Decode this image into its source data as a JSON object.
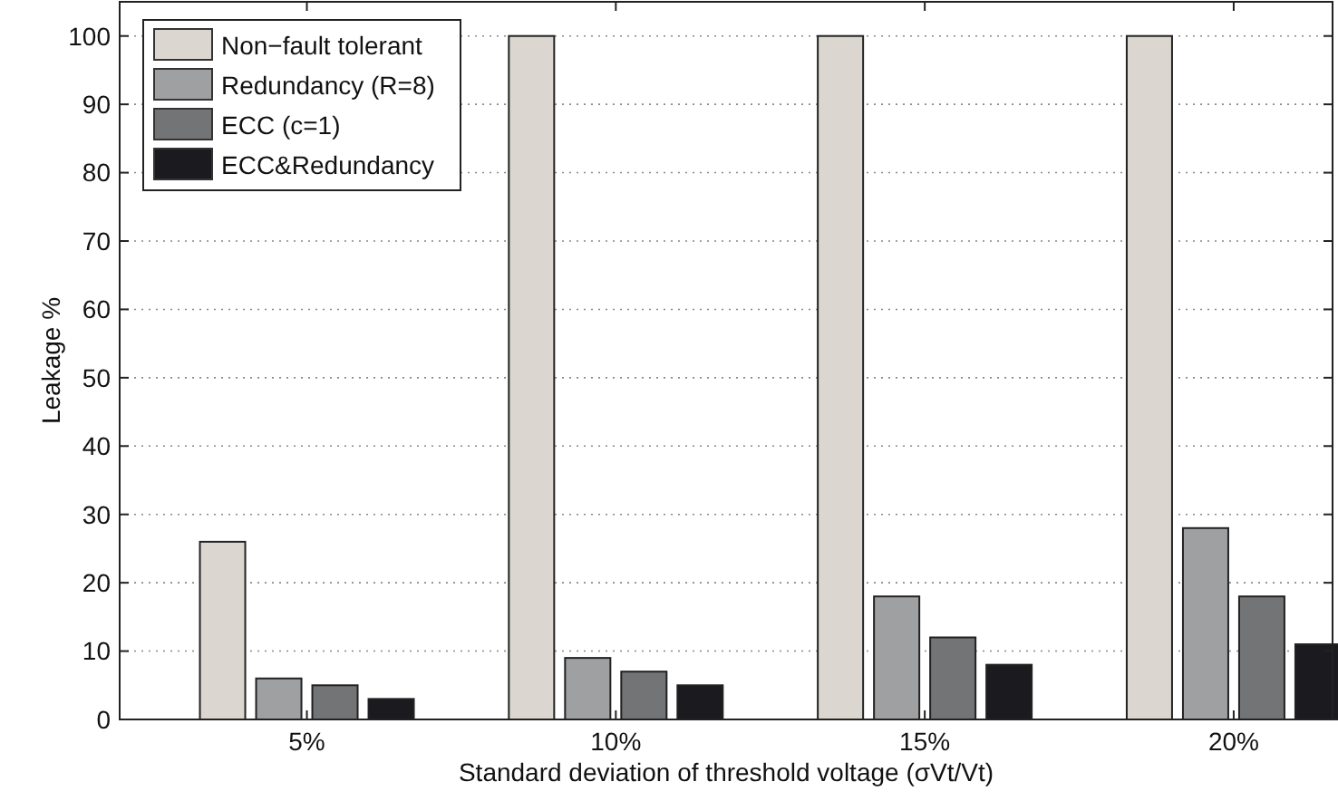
{
  "chart_data": {
    "type": "bar",
    "xlabel": "Standard deviation of threshold voltage (σVt/Vt)",
    "ylabel": "Leakage %",
    "categories": [
      "5%",
      "10%",
      "15%",
      "20%"
    ],
    "series": [
      {
        "name": "Non−fault tolerant",
        "color": "#dbd7d0",
        "values": [
          26,
          100,
          100,
          100
        ]
      },
      {
        "name": "Redundancy (R=8)",
        "color": "#9fa0a2",
        "values": [
          6,
          9,
          18,
          28
        ]
      },
      {
        "name": "ECC (c=1)",
        "color": "#737475",
        "values": [
          5,
          7,
          12,
          18
        ]
      },
      {
        "name": "ECC&Redundancy",
        "color": "#1b1a1e",
        "values": [
          3,
          5,
          8,
          11
        ]
      }
    ],
    "ylim": [
      0,
      105
    ],
    "yticks": [
      0,
      10,
      20,
      30,
      40,
      50,
      60,
      70,
      80,
      90,
      100
    ],
    "grid": "y",
    "legend": "top left"
  }
}
